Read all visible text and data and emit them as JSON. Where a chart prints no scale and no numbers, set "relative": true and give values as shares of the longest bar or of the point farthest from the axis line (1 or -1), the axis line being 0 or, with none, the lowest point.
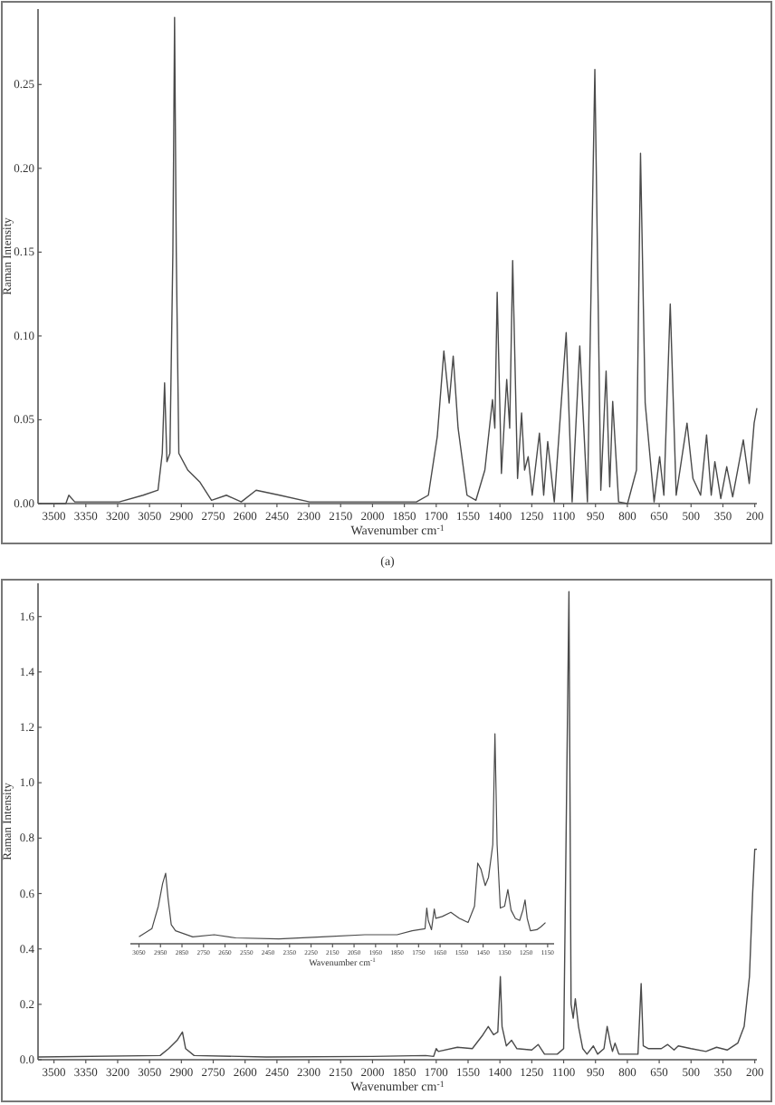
{
  "chart_data": [
    {
      "type": "line",
      "xlabel": "Wavenumber cm$^{-1}$",
      "ylabel": "Raman Intensity",
      "annotations": [
        "(a)"
      ],
      "xlim": [
        3575,
        190
      ],
      "ylim": [
        0,
        0.295
      ],
      "xticks": [
        3500,
        3350,
        3200,
        3050,
        2900,
        2750,
        2600,
        2450,
        2300,
        2150,
        2000,
        1850,
        1700,
        1550,
        1400,
        1250,
        1100,
        950,
        800,
        650,
        500,
        350,
        200
      ],
      "yticks": [
        {
          "value": 0,
          "label": "0.00"
        },
        {
          "value": 0.05,
          "label": "0.05"
        },
        {
          "value": 0.1,
          "label": "0.10"
        },
        {
          "value": 0.15,
          "label": "0.15"
        },
        {
          "value": 0.2,
          "label": "0.20"
        },
        {
          "value": 0.25,
          "label": "0.25"
        }
      ],
      "series": [
        {
          "color": "#4a4a4a",
          "x": [
            3575,
            3444,
            3430,
            3402,
            3192,
            3080,
            3010,
            2990,
            2979,
            2968,
            2954,
            2940,
            2932,
            2924,
            2912,
            2870,
            2814,
            2758,
            2688,
            2618,
            2548,
            2437,
            2297,
            2073,
            1793,
            1737,
            1695,
            1664,
            1639,
            1620,
            1597,
            1555,
            1513,
            1471,
            1435,
            1424,
            1413,
            1393,
            1368,
            1354,
            1340,
            1317,
            1298,
            1284,
            1267,
            1248,
            1214,
            1194,
            1175,
            1144,
            1088,
            1060,
            1024,
            988,
            953,
            925,
            900,
            883,
            869,
            841,
            799,
            757,
            738,
            716,
            674,
            648,
            628,
            598,
            570,
            519,
            491,
            455,
            427,
            405,
            388,
            360,
            332,
            304,
            254,
            226,
            203,
            190
          ],
          "values": [
            0.0,
            0.0,
            0.005,
            0.001,
            0.001,
            0.005,
            0.008,
            0.03,
            0.072,
            0.025,
            0.03,
            0.15,
            0.29,
            0.15,
            0.03,
            0.02,
            0.013,
            0.002,
            0.005,
            0.001,
            0.008,
            0.005,
            0.001,
            0.001,
            0.001,
            0.005,
            0.04,
            0.091,
            0.06,
            0.088,
            0.045,
            0.005,
            0.002,
            0.02,
            0.062,
            0.045,
            0.126,
            0.018,
            0.074,
            0.045,
            0.145,
            0.015,
            0.054,
            0.02,
            0.028,
            0.005,
            0.042,
            0.005,
            0.037,
            0.001,
            0.102,
            0.001,
            0.094,
            0.001,
            0.259,
            0.008,
            0.079,
            0.01,
            0.061,
            0.001,
            0.0,
            0.02,
            0.209,
            0.06,
            0.001,
            0.028,
            0.005,
            0.119,
            0.005,
            0.048,
            0.015,
            0.005,
            0.041,
            0.005,
            0.025,
            0.003,
            0.022,
            0.004,
            0.038,
            0.012,
            0.048,
            0.057
          ]
        }
      ]
    },
    {
      "type": "line",
      "xlabel": "Wavenumber cm$^{-1}$",
      "ylabel": "Raman Intensity",
      "xlim": [
        3575,
        190
      ],
      "ylim": [
        0,
        1.72
      ],
      "xticks": [
        3500,
        3350,
        3200,
        3050,
        2900,
        2750,
        2600,
        2450,
        2300,
        2150,
        2000,
        1850,
        1700,
        1550,
        1400,
        1250,
        1100,
        950,
        800,
        650,
        500,
        350,
        200
      ],
      "yticks": [
        {
          "value": 0,
          "label": "0.0"
        },
        {
          "value": 0.2,
          "label": "0.2"
        },
        {
          "value": 0.4,
          "label": "0.4"
        },
        {
          "value": 0.6,
          "label": "0.6"
        },
        {
          "value": 0.8,
          "label": "0.8"
        },
        {
          "value": 1,
          "label": "1.0"
        },
        {
          "value": 1.2,
          "label": "1.2"
        },
        {
          "value": 1.4,
          "label": "1.4"
        },
        {
          "value": 1.6,
          "label": "1.6"
        }
      ],
      "series": [
        {
          "color": "#4a4a4a",
          "x": [
            3575,
            3000,
            2960,
            2920,
            2895,
            2880,
            2840,
            2500,
            2000,
            1750,
            1712,
            1700,
            1690,
            1600,
            1530,
            1480,
            1455,
            1430,
            1410,
            1398,
            1390,
            1370,
            1345,
            1320,
            1250,
            1220,
            1190,
            1130,
            1100,
            1075,
            1065,
            1055,
            1045,
            1030,
            1010,
            990,
            960,
            940,
            910,
            895,
            880,
            870,
            858,
            840,
            750,
            735,
            725,
            700,
            640,
            610,
            580,
            560,
            500,
            430,
            380,
            330,
            280,
            250,
            225,
            210,
            200,
            190
          ],
          "values": [
            0.01,
            0.015,
            0.04,
            0.07,
            0.1,
            0.04,
            0.015,
            0.01,
            0.012,
            0.015,
            0.012,
            0.04,
            0.03,
            0.045,
            0.04,
            0.09,
            0.12,
            0.09,
            0.1,
            0.3,
            0.12,
            0.05,
            0.07,
            0.04,
            0.035,
            0.055,
            0.02,
            0.02,
            0.04,
            1.69,
            0.2,
            0.15,
            0.22,
            0.12,
            0.04,
            0.02,
            0.05,
            0.02,
            0.04,
            0.12,
            0.06,
            0.03,
            0.06,
            0.02,
            0.02,
            0.275,
            0.05,
            0.04,
            0.04,
            0.055,
            0.035,
            0.05,
            0.04,
            0.03,
            0.045,
            0.035,
            0.06,
            0.12,
            0.3,
            0.6,
            0.76,
            0.76
          ]
        }
      ]
    },
    {
      "type": "line",
      "relative": true,
      "tick_labels": "x",
      "xlabel": "Wavenumber cm$^{-1}$",
      "xlim": [
        3090,
        1120
      ],
      "xticks": [
        3050,
        2950,
        2850,
        2750,
        2650,
        2550,
        2450,
        2350,
        2250,
        2150,
        2050,
        1950,
        1850,
        1750,
        1650,
        1550,
        1450,
        1350,
        1250,
        1150
      ],
      "series": [
        {
          "color": "#4a4a4a",
          "x": [
            3050,
            2990,
            2960,
            2940,
            2926,
            2915,
            2900,
            2880,
            2800,
            2700,
            2600,
            2400,
            2200,
            2000,
            1850,
            1780,
            1720,
            1712,
            1705,
            1690,
            1677,
            1670,
            1640,
            1600,
            1560,
            1520,
            1490,
            1475,
            1460,
            1440,
            1425,
            1405,
            1395,
            1385,
            1370,
            1350,
            1335,
            1320,
            1300,
            1280,
            1265,
            1255,
            1245,
            1230,
            1200,
            1180,
            1160
          ],
          "values": [
            0.033,
            0.072,
            0.179,
            0.287,
            0.336,
            0.218,
            0.091,
            0.062,
            0.033,
            0.043,
            0.028,
            0.023,
            0.033,
            0.043,
            0.043,
            0.062,
            0.072,
            0.17,
            0.111,
            0.067,
            0.166,
            0.121,
            0.13,
            0.15,
            0.121,
            0.101,
            0.179,
            0.384,
            0.355,
            0.277,
            0.316,
            0.472,
            1.0,
            0.472,
            0.17,
            0.179,
            0.258,
            0.16,
            0.121,
            0.111,
            0.16,
            0.209,
            0.121,
            0.062,
            0.067,
            0.082,
            0.101
          ]
        }
      ]
    }
  ]
}
